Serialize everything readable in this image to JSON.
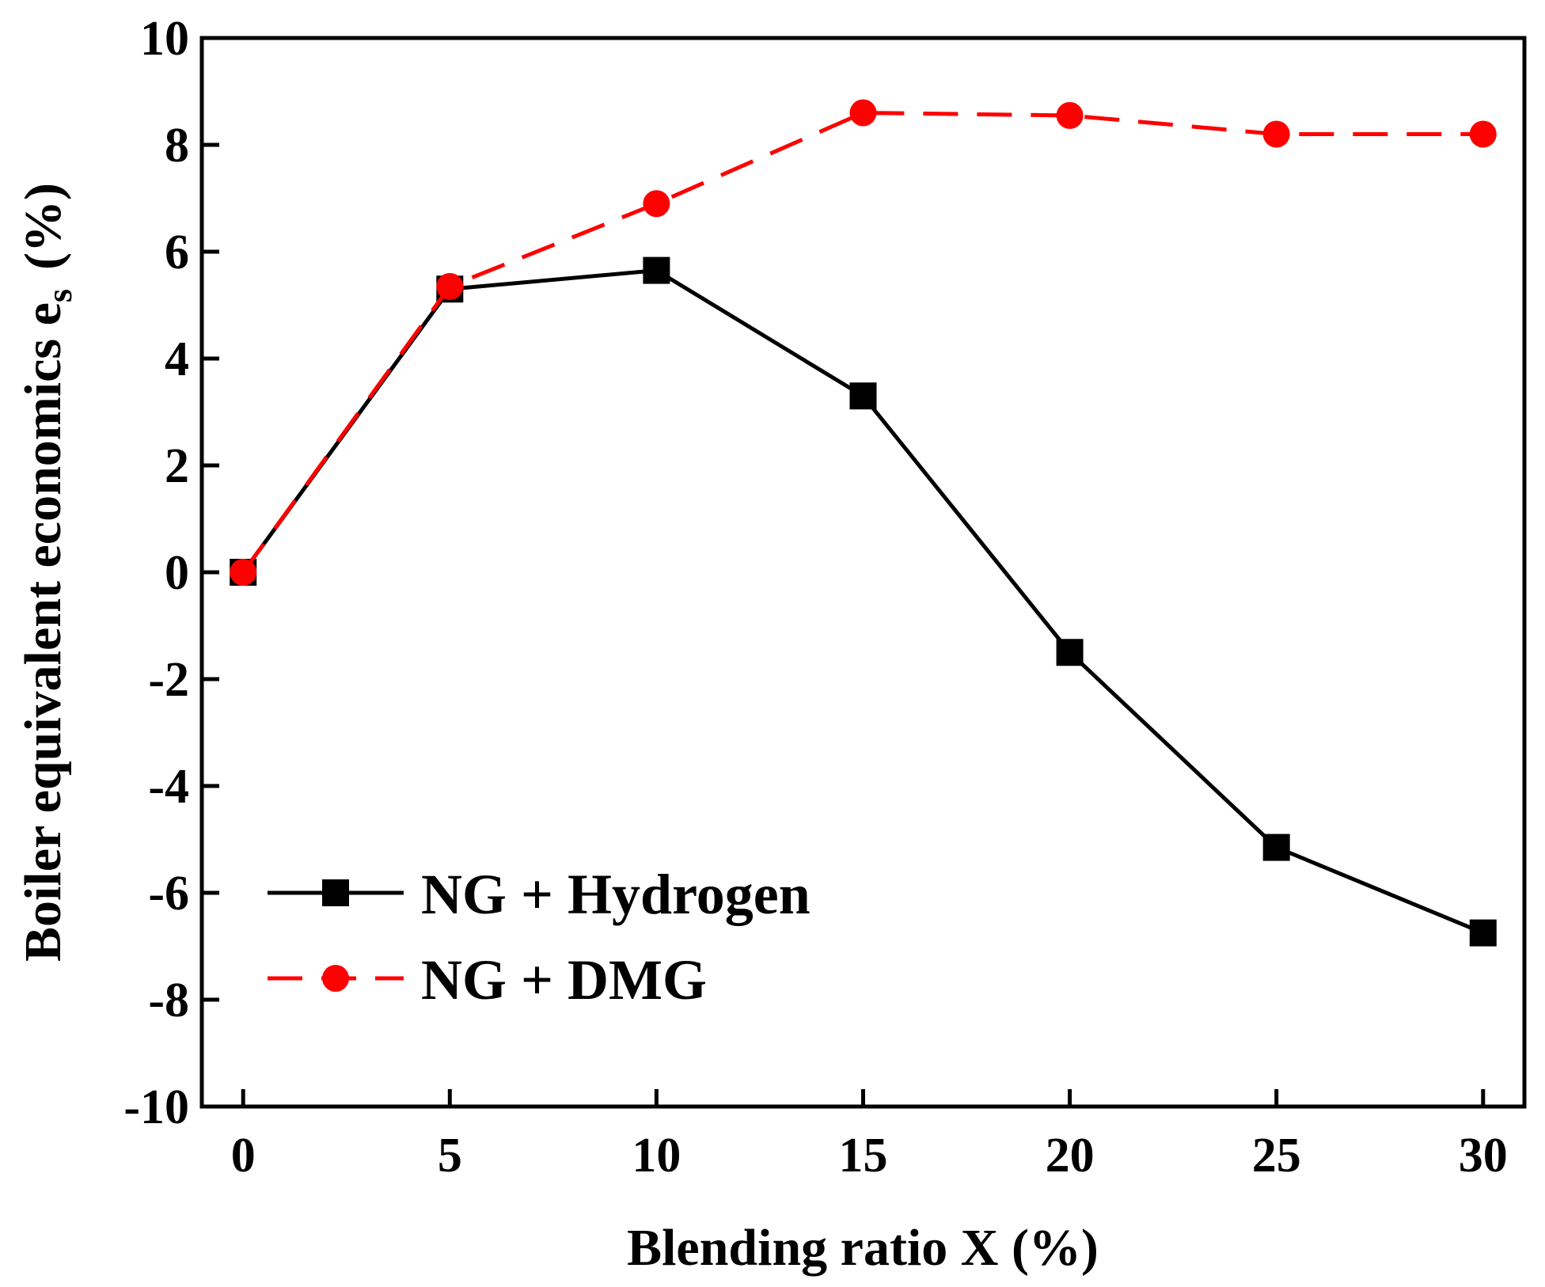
{
  "chart_data": {
    "type": "line",
    "title": "",
    "xlabel": "Blending ratio X (%)",
    "ylabel": {
      "main": "Boiler equivalent economics e",
      "subscript": "s",
      "unit": "(%)"
    },
    "x": [
      0,
      5,
      10,
      15,
      20,
      25,
      30
    ],
    "xlim": [
      -1,
      31
    ],
    "ylim": [
      -10,
      10
    ],
    "xticks": [
      "0",
      "5",
      "10",
      "15",
      "20",
      "25",
      "30"
    ],
    "yticks": [
      "-10",
      "-8",
      "-6",
      "-4",
      "-2",
      "0",
      "2",
      "4",
      "6",
      "8",
      "10"
    ],
    "legend_position": "bottom-left",
    "grid": false,
    "series": [
      {
        "name": "NG + Hydrogen",
        "values": [
          0,
          5.3,
          5.65,
          3.3,
          -1.5,
          -5.15,
          -6.75
        ],
        "color": "#000000",
        "marker": "square",
        "line_style": "solid"
      },
      {
        "name": "NG + DMG",
        "values": [
          0,
          5.35,
          6.9,
          8.6,
          8.55,
          8.2,
          8.2
        ],
        "color": "#ff0000",
        "marker": "circle",
        "line_style": "dashed"
      }
    ]
  }
}
